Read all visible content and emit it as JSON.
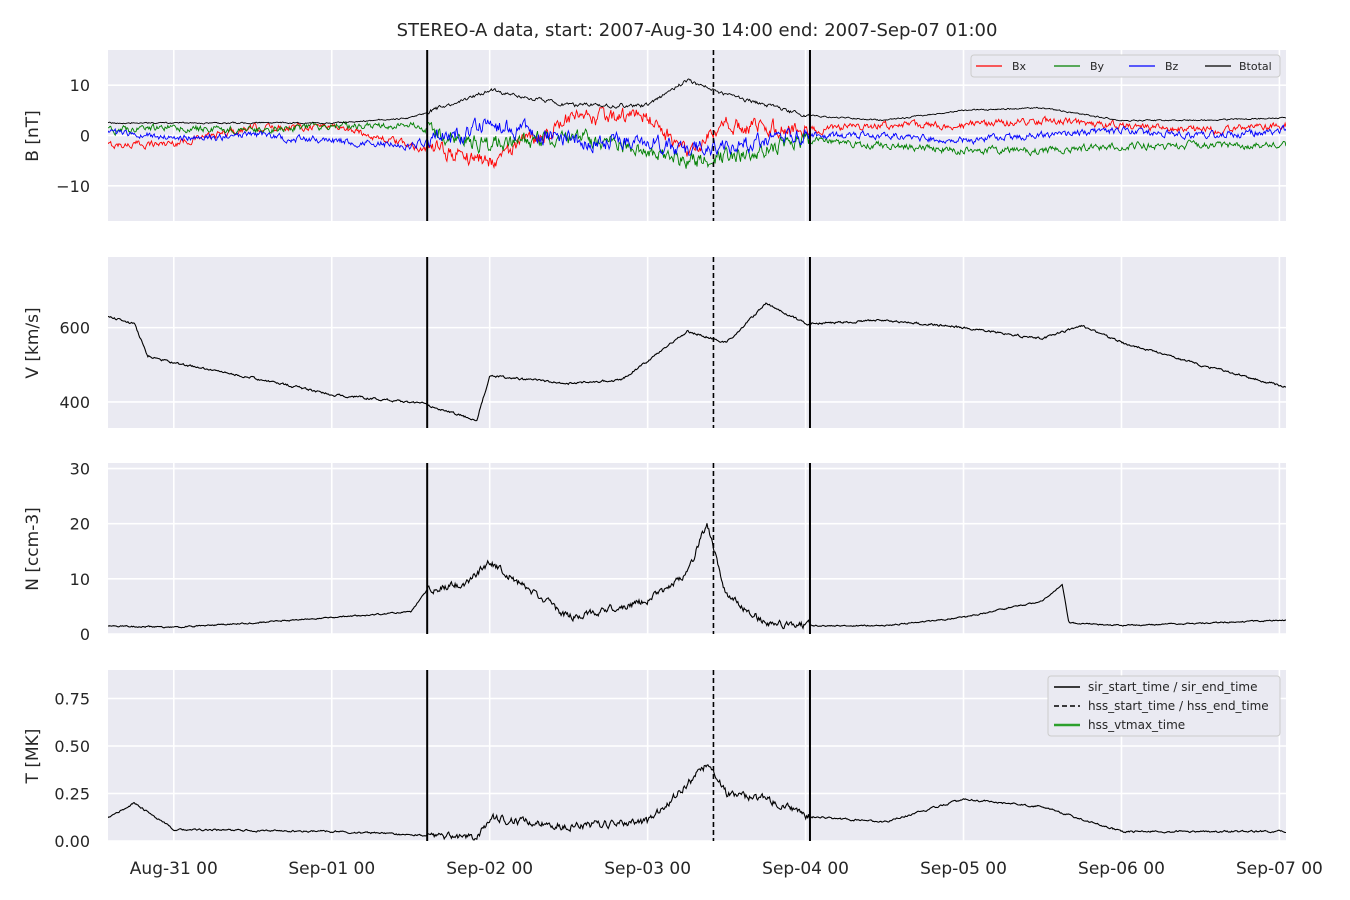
{
  "title": "STEREO-A data, start: 2007-Aug-30 14:00  end: 2007-Sep-07 01:00",
  "time_axis": {
    "start": "2007-08-30 14:00",
    "end": "2007-09-07 01:00",
    "tick_labels": [
      "Aug-31 00",
      "Sep-01 00",
      "Sep-02 00",
      "Sep-03 00",
      "Sep-04 00",
      "Sep-05 00",
      "Sep-06 00",
      "Sep-07 00"
    ],
    "tick_times": [
      "2007-08-31 00:00",
      "2007-09-01 00:00",
      "2007-09-02 00:00",
      "2007-09-03 00:00",
      "2007-09-04 00:00",
      "2007-09-05 00:00",
      "2007-09-06 00:00",
      "2007-09-07 00:00"
    ]
  },
  "events": {
    "sir_start_time": "2007-09-01 14:30",
    "sir_end_time": "2007-09-04 00:40",
    "hss_start_time": "2007-09-03 10:00",
    "legend": [
      "sir_start_time / sir_end_time",
      "hss_start_time / hss_end_time",
      "hss_vtmax_time"
    ],
    "legend_colors": [
      "#000000",
      "#000000",
      "#2ca02c"
    ]
  },
  "style": {
    "background": "#eaeaf2",
    "grid": "#ffffff",
    "text": "#262626"
  },
  "chart_data": [
    {
      "type": "line",
      "ylabel": "B [nT]",
      "ylim": [
        -17,
        17
      ],
      "yticks": [
        -10,
        0,
        10
      ],
      "ytick_labels": [
        "−10",
        "0",
        "10"
      ],
      "grid": true,
      "legend_position": "upper-right",
      "legend_layout": "single-row",
      "series": [
        {
          "name": "Bx",
          "color": "#ff0000",
          "x": [
            "2007-08-30 14:00",
            "2007-08-31 00:00",
            "2007-08-31 12:00",
            "2007-09-01 00:00",
            "2007-09-01 12:00",
            "2007-09-02 00:00",
            "2007-09-02 12:00",
            "2007-09-03 00:00",
            "2007-09-03 06:00",
            "2007-09-03 12:00",
            "2007-09-04 00:00",
            "2007-09-04 12:00",
            "2007-09-05 00:00",
            "2007-09-05 12:00",
            "2007-09-06 00:00",
            "2007-09-06 12:00",
            "2007-09-07 01:00"
          ],
          "y": [
            -2,
            -1.5,
            1.5,
            2,
            -2,
            -5,
            3,
            4,
            -4,
            2,
            1,
            2,
            2,
            3,
            2,
            1,
            2
          ]
        },
        {
          "name": "By",
          "color": "#008000",
          "x": [
            "2007-08-30 14:00",
            "2007-08-31 00:00",
            "2007-08-31 12:00",
            "2007-09-01 00:00",
            "2007-09-01 12:00",
            "2007-09-02 00:00",
            "2007-09-02 12:00",
            "2007-09-03 00:00",
            "2007-09-03 06:00",
            "2007-09-03 12:00",
            "2007-09-04 00:00",
            "2007-09-04 12:00",
            "2007-09-05 00:00",
            "2007-09-05 12:00",
            "2007-09-06 00:00",
            "2007-09-06 12:00",
            "2007-09-07 01:00"
          ],
          "y": [
            1,
            1.5,
            1,
            2,
            2,
            -2,
            0,
            -3,
            -5,
            -4,
            -1,
            -2,
            -3,
            -3,
            -2,
            -2,
            -2
          ]
        },
        {
          "name": "Bz",
          "color": "#0000ff",
          "x": [
            "2007-08-30 14:00",
            "2007-08-31 00:00",
            "2007-08-31 12:00",
            "2007-09-01 00:00",
            "2007-09-01 12:00",
            "2007-09-02 00:00",
            "2007-09-02 12:00",
            "2007-09-03 00:00",
            "2007-09-03 06:00",
            "2007-09-03 12:00",
            "2007-09-04 00:00",
            "2007-09-04 12:00",
            "2007-09-05 00:00",
            "2007-09-05 12:00",
            "2007-09-06 00:00",
            "2007-09-06 12:00",
            "2007-09-07 01:00"
          ],
          "y": [
            0.5,
            -0.5,
            0,
            -1,
            -2,
            2,
            -1,
            -1,
            -3,
            -2,
            0,
            0,
            -1,
            0,
            1,
            0,
            1
          ]
        },
        {
          "name": "Btotal",
          "color": "#000000",
          "x": [
            "2007-08-30 14:00",
            "2007-08-31 00:00",
            "2007-08-31 12:00",
            "2007-09-01 00:00",
            "2007-09-01 12:00",
            "2007-09-02 00:00",
            "2007-09-02 12:00",
            "2007-09-03 00:00",
            "2007-09-03 06:00",
            "2007-09-03 12:00",
            "2007-09-04 00:00",
            "2007-09-04 12:00",
            "2007-09-05 00:00",
            "2007-09-05 12:00",
            "2007-09-06 00:00",
            "2007-09-06 12:00",
            "2007-09-07 01:00"
          ],
          "y": [
            2.5,
            2.5,
            2.5,
            2.5,
            3.5,
            9,
            6,
            6,
            11,
            8,
            4,
            3,
            5,
            5.5,
            3,
            3,
            3.5
          ]
        }
      ]
    },
    {
      "type": "line",
      "ylabel": "V [km/s]",
      "ylim": [
        330,
        790
      ],
      "yticks": [
        400,
        600
      ],
      "ytick_labels": [
        "400",
        "600"
      ],
      "grid": true,
      "series": [
        {
          "color": "#000000",
          "x": [
            "2007-08-30 14:00",
            "2007-08-30 18:00",
            "2007-08-30 20:00",
            "2007-08-31 00:00",
            "2007-08-31 12:00",
            "2007-09-01 00:00",
            "2007-09-01 14:00",
            "2007-09-01 22:00",
            "2007-09-02 00:00",
            "2007-09-02 12:00",
            "2007-09-02 20:00",
            "2007-09-03 00:00",
            "2007-09-03 06:00",
            "2007-09-03 12:00",
            "2007-09-03 18:00",
            "2007-09-04 00:00",
            "2007-09-04 12:00",
            "2007-09-05 00:00",
            "2007-09-05 12:00",
            "2007-09-05 18:00",
            "2007-09-06 00:00",
            "2007-09-06 12:00",
            "2007-09-07 01:00"
          ],
          "y": [
            630,
            610,
            525,
            505,
            465,
            420,
            395,
            350,
            470,
            450,
            460,
            510,
            590,
            560,
            665,
            610,
            620,
            600,
            570,
            605,
            560,
            500,
            440
          ]
        }
      ]
    },
    {
      "type": "line",
      "ylabel": "N [ccm-3]",
      "ylim": [
        0,
        31
      ],
      "yticks": [
        0,
        10,
        20,
        30
      ],
      "ytick_labels": [
        "0",
        "10",
        "20",
        "30"
      ],
      "grid": true,
      "series": [
        {
          "color": "#000000",
          "x": [
            "2007-08-30 14:00",
            "2007-08-31 00:00",
            "2007-08-31 12:00",
            "2007-09-01 00:00",
            "2007-09-01 12:00",
            "2007-09-01 14:30",
            "2007-09-01 20:00",
            "2007-09-02 00:00",
            "2007-09-02 06:00",
            "2007-09-02 12:00",
            "2007-09-03 00:00",
            "2007-09-03 06:00",
            "2007-09-03 09:00",
            "2007-09-03 12:00",
            "2007-09-03 18:00",
            "2007-09-04 00:00",
            "2007-09-04 12:00",
            "2007-09-05 00:00",
            "2007-09-05 12:00",
            "2007-09-05 15:00",
            "2007-09-05 16:00",
            "2007-09-06 00:00",
            "2007-09-07 01:00"
          ],
          "y": [
            1.5,
            1.2,
            2,
            3,
            4,
            8,
            9,
            13,
            8,
            3,
            6,
            11,
            20,
            7,
            2,
            1.5,
            1.5,
            3,
            6,
            9,
            2,
            1.5,
            2.5
          ]
        }
      ]
    },
    {
      "type": "line",
      "ylabel": "T [MK]",
      "ylim": [
        0,
        0.9
      ],
      "yticks": [
        0.0,
        0.25,
        0.5,
        0.75
      ],
      "ytick_labels": [
        "0.00",
        "0.25",
        "0.50",
        "0.75"
      ],
      "grid": true,
      "legend_position": "upper-right",
      "series": [
        {
          "color": "#000000",
          "x": [
            "2007-08-30 14:00",
            "2007-08-30 18:00",
            "2007-08-31 00:00",
            "2007-09-01 00:00",
            "2007-09-01 14:30",
            "2007-09-01 22:00",
            "2007-09-02 00:00",
            "2007-09-02 12:00",
            "2007-09-03 00:00",
            "2007-09-03 06:00",
            "2007-09-03 09:00",
            "2007-09-03 12:00",
            "2007-09-03 18:00",
            "2007-09-04 00:00",
            "2007-09-04 12:00",
            "2007-09-05 00:00",
            "2007-09-05 12:00",
            "2007-09-06 00:00",
            "2007-09-06 12:00",
            "2007-09-07 01:00"
          ],
          "y": [
            0.12,
            0.2,
            0.06,
            0.05,
            0.03,
            0.02,
            0.12,
            0.08,
            0.1,
            0.3,
            0.4,
            0.25,
            0.22,
            0.13,
            0.1,
            0.22,
            0.18,
            0.05,
            0.05,
            0.05
          ]
        }
      ]
    }
  ]
}
